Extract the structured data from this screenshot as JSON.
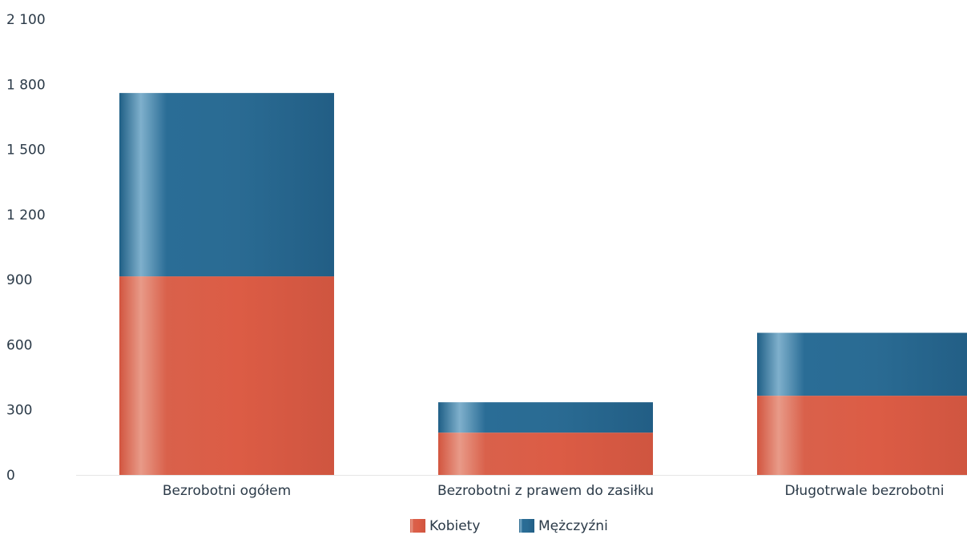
{
  "chart_data": {
    "type": "bar",
    "stacked": true,
    "categories": [
      "Bezrobotni ogółem",
      "Bezrobotni z prawem do zasiłku",
      "Długotrwale bezrobotni"
    ],
    "series": [
      {
        "name": "Kobiety",
        "values": [
          915,
          195,
          365
        ],
        "color": "#d9604a"
      },
      {
        "name": "Mężczyźni",
        "values": [
          845,
          140,
          290
        ],
        "color": "#2a6b93"
      }
    ],
    "ylim": [
      0,
      2100
    ],
    "yticks": [
      0,
      300,
      600,
      900,
      1200,
      1500,
      1800,
      2100
    ],
    "ytick_labels": [
      "0",
      "300",
      "600",
      "900",
      "1 200",
      "1 500",
      "1 800",
      "2 100"
    ],
    "legend_position": "bottom-center",
    "grid": false
  }
}
